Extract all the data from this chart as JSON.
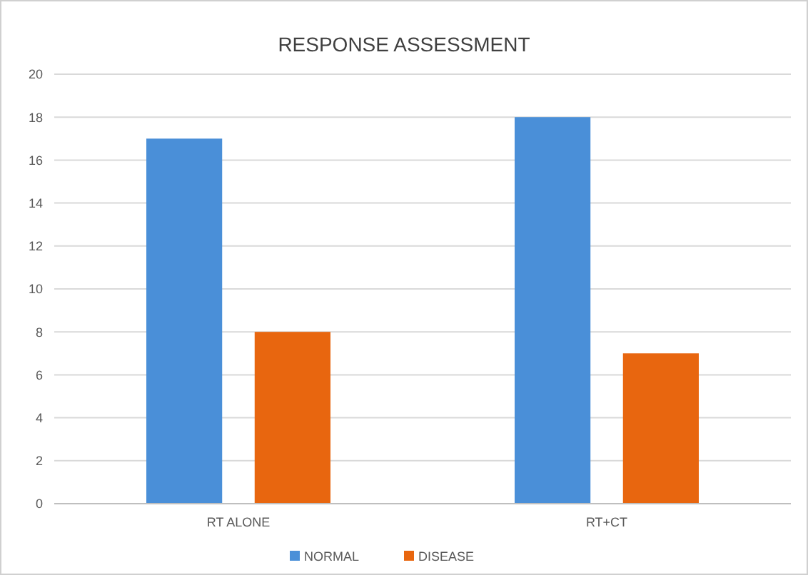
{
  "chart_data": {
    "type": "bar",
    "title": "RESPONSE ASSESSMENT",
    "categories": [
      "RT ALONE",
      "RT+CT"
    ],
    "series": [
      {
        "name": "NORMAL",
        "color": "#4a8fd8",
        "values": [
          17,
          18
        ]
      },
      {
        "name": "DISEASE",
        "color": "#e8660f",
        "values": [
          8,
          7
        ]
      }
    ],
    "ylim": [
      0,
      20
    ],
    "yticks": [
      0,
      2,
      4,
      6,
      8,
      10,
      12,
      14,
      16,
      18,
      20
    ],
    "grid": "y",
    "legend": "bottom"
  }
}
